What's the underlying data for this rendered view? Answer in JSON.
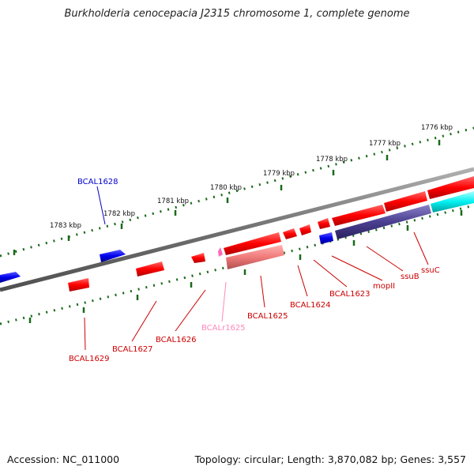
{
  "title": "Burkholderia cenocepacia J2315 chromosome 1, complete genome",
  "footer": {
    "accession": "Accession: NC_011000",
    "topology": "Topology: circular; Length: 3,870,082 bp; Genes: 3,557"
  },
  "colors": {
    "backbone": "#808080",
    "tick": "#1a6a1a",
    "gene_forward": "#ff0000",
    "gene_reverse": "#0000ee",
    "rna": "#f08080",
    "pseudo": "#ff69b4",
    "dark_blue": "#4a3f8f",
    "cyan": "#00ffff",
    "label_red": "#cc0000",
    "label_blue": "#0000cc",
    "label_pink": "#ff88bb"
  },
  "scale_ticks": [
    "1776 kbp",
    "1777 kbp",
    "1778 kbp",
    "1779 kbp",
    "1780 kbp",
    "1781 kbp",
    "1782 kbp",
    "1783 kbp"
  ],
  "gene_labels": [
    "BCAL1628",
    "BCAL1629",
    "BCAL1627",
    "BCAL1626",
    "BCALr1625",
    "BCAL1625",
    "BCAL1624",
    "BCAL1623",
    "mopII",
    "ssuB",
    "ssuC"
  ]
}
